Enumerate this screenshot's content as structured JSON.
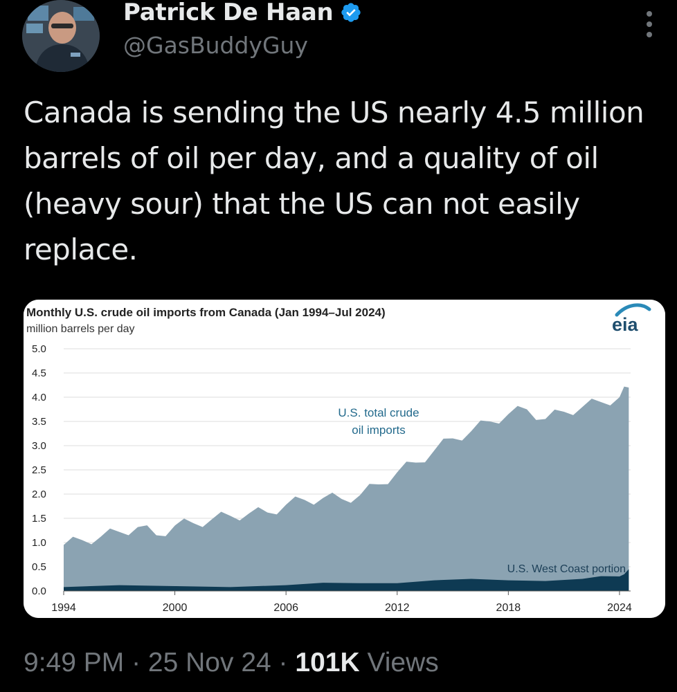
{
  "author": {
    "display_name": "Patrick De Haan",
    "handle": "@GasBuddyGuy",
    "verified_icon": "verified-badge-icon",
    "verified_color": "#1d9bf0"
  },
  "tweet": {
    "text": "Canada is sending the US nearly 4.5 million barrels of oil per day, and a quality of oil (heavy sour) that the US can not easily replace."
  },
  "meta": {
    "time": "9:49 PM",
    "separator": " · ",
    "date": "25 Nov 24",
    "views_count": "101K",
    "views_label": " Views"
  },
  "chart_data": {
    "type": "area",
    "title": "Monthly U.S. crude oil imports from Canada (Jan 1994–Jul 2024)",
    "ylabel": "million barrels per day",
    "logo": "eia",
    "ylim": [
      0,
      5.0
    ],
    "xlim": [
      1994,
      2024.6
    ],
    "yticks": [
      "5.0",
      "4.5",
      "4.0",
      "3.5",
      "3.0",
      "2.5",
      "2.0",
      "1.5",
      "1.0",
      "0.5",
      "0.0"
    ],
    "xticks": [
      "1994",
      "2000",
      "2006",
      "2012",
      "2018",
      "2024"
    ],
    "grid": true,
    "colors": {
      "total": "#8ba3b2",
      "west_coast": "#0e3a53",
      "label_total": "#236a8c",
      "label_west": "#1c3f57"
    },
    "annotations": [
      {
        "text": "U.S. total crude",
        "series": "total"
      },
      {
        "text": "oil imports",
        "series": "total"
      },
      {
        "text": "U.S. West Coast portion",
        "series": "west_coast"
      }
    ],
    "series": [
      {
        "name": "U.S. total crude oil imports",
        "x": [
          1994,
          1995,
          1996,
          1997,
          1998,
          1999,
          2000,
          2001,
          2002,
          2003,
          2004,
          2005,
          2006,
          2007,
          2008,
          2009,
          2010,
          2011,
          2012,
          2013,
          2014,
          2015,
          2016,
          2017,
          2018,
          2019,
          2020,
          2021,
          2022,
          2023,
          2024,
          2024.5
        ],
        "values": [
          0.95,
          1.05,
          1.12,
          1.22,
          1.32,
          1.15,
          1.35,
          1.4,
          1.48,
          1.55,
          1.6,
          1.62,
          1.78,
          1.88,
          1.92,
          1.9,
          1.98,
          2.2,
          2.45,
          2.65,
          2.9,
          3.15,
          3.3,
          3.5,
          3.65,
          3.75,
          3.55,
          3.7,
          3.8,
          3.9,
          4.0,
          4.2
        ]
      },
      {
        "name": "U.S. West Coast portion",
        "x": [
          1994,
          2000,
          2006,
          2010,
          2014,
          2018,
          2022,
          2024,
          2024.5
        ],
        "values": [
          0.08,
          0.1,
          0.12,
          0.16,
          0.22,
          0.22,
          0.25,
          0.3,
          0.45
        ]
      }
    ]
  }
}
